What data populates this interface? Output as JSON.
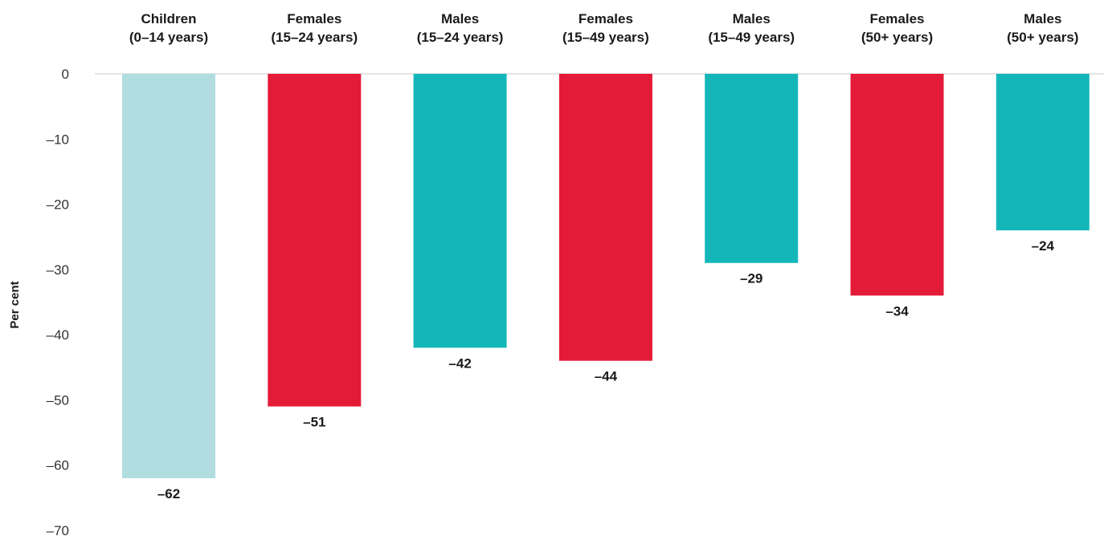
{
  "chart_data": {
    "type": "bar",
    "title": "",
    "xlabel": "",
    "ylabel": "Per cent",
    "ylim": [
      -70,
      0
    ],
    "yticks": [
      0,
      -10,
      -20,
      -30,
      -40,
      -50,
      -60,
      -70
    ],
    "ytick_labels": [
      "0",
      "–10",
      "–20",
      "–30",
      "–40",
      "–50",
      "–60",
      "–70"
    ],
    "categories": [
      [
        "Children",
        "(0–14 years)"
      ],
      [
        "Females",
        "(15–24 years)"
      ],
      [
        "Males",
        "(15–24 years)"
      ],
      [
        "Females",
        "(15–49 years)"
      ],
      [
        "Males",
        "(15–49 years)"
      ],
      [
        "Females",
        "(50+ years)"
      ],
      [
        "Males",
        "(50+ years)"
      ]
    ],
    "values": [
      -62,
      -51,
      -42,
      -44,
      -29,
      -34,
      -24
    ],
    "value_labels": [
      "–62",
      "–51",
      "–42",
      "–44",
      "–29",
      "–34",
      "–24"
    ],
    "colors": [
      "#b1dde0",
      "#e41b38",
      "#14b7b9",
      "#e41b38",
      "#14b7b9",
      "#e41b38",
      "#14b7b9"
    ],
    "category_position": "top",
    "grid": false
  }
}
